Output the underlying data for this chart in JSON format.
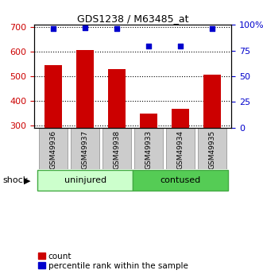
{
  "title": "GDS1238 / M63485_at",
  "categories": [
    "GSM49936",
    "GSM49937",
    "GSM49938",
    "GSM49933",
    "GSM49934",
    "GSM49935"
  ],
  "bar_values": [
    545,
    608,
    530,
    348,
    368,
    507
  ],
  "scatter_pct": [
    96,
    97,
    96,
    79,
    79,
    96
  ],
  "ylim_left": [
    290,
    710
  ],
  "ylim_right": [
    0,
    100
  ],
  "yticks_left": [
    300,
    400,
    500,
    600,
    700
  ],
  "ytick_labels_left": [
    "300",
    "400",
    "500",
    "600",
    "700"
  ],
  "yticks_right": [
    0,
    25,
    50,
    75,
    100
  ],
  "ytick_labels_right": [
    "0",
    "25",
    "50",
    "75",
    "100%"
  ],
  "bar_color": "#cc0000",
  "scatter_color": "#0000cc",
  "bar_width": 0.55,
  "groups": [
    {
      "label": "uninjured",
      "color": "#ccffcc",
      "border": "#44aa44",
      "count": 3
    },
    {
      "label": "contused",
      "color": "#55cc55",
      "border": "#44aa44",
      "count": 3
    }
  ],
  "group_label": "shock",
  "tick_color_left": "#cc0000",
  "tick_color_right": "#0000cc",
  "legend_items": [
    "count",
    "percentile rank within the sample"
  ],
  "legend_colors": [
    "#cc0000",
    "#0000cc"
  ],
  "label_box_color": "#cccccc",
  "label_box_edge": "#888888"
}
